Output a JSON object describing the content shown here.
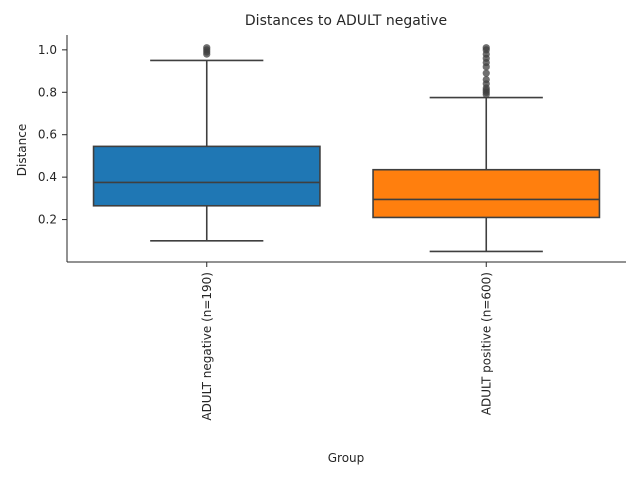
{
  "chart_data": {
    "type": "box",
    "title": "Distances to ADULT negative",
    "xlabel": "Group",
    "ylabel": "Distance",
    "ylim": [
      0.0,
      1.07
    ],
    "yticks": [
      0.2,
      0.4,
      0.6,
      0.8,
      1.0
    ],
    "ytick_labels": [
      "0.2",
      "0.4",
      "0.6",
      "0.8",
      "1.0"
    ],
    "grid": false,
    "categories": [
      "ADULT negative (n=190)",
      "ADULT positive (n=600)"
    ],
    "boxes": [
      {
        "name": "ADULT negative (n=190)",
        "color": "#1f77b4",
        "whisker_low": 0.1,
        "q1": 0.265,
        "median": 0.375,
        "q3": 0.545,
        "whisker_high": 0.95,
        "outliers": [
          0.98,
          0.99,
          1.0,
          1.01
        ]
      },
      {
        "name": "ADULT positive (n=600)",
        "color": "#ff7f0e",
        "whisker_low": 0.05,
        "q1": 0.21,
        "median": 0.295,
        "q3": 0.435,
        "whisker_high": 0.775,
        "outliers": [
          0.79,
          0.8,
          0.81,
          0.82,
          0.84,
          0.86,
          0.89,
          0.92,
          0.94,
          0.96,
          0.98,
          1.0,
          1.01
        ]
      }
    ]
  }
}
